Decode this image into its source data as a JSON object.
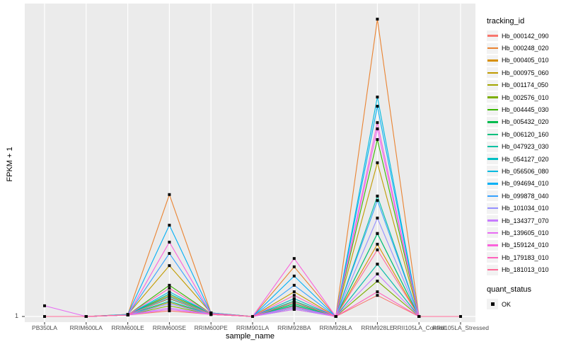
{
  "chart_data": {
    "type": "line",
    "title": "",
    "xlabel": "sample_name",
    "ylabel": "FPKM + 1",
    "x_categories": [
      "PB350LA",
      "RRIM600LA",
      "RRIM600LE",
      "RRIM600SE",
      "RRIM600PE",
      "RRIM901LA",
      "RRIM928BA",
      "RRIM928LA",
      "RRIM928LE",
      "RRII105LA_Control",
      "RRII105LA_Stressed"
    ],
    "y_ticks": [
      "1"
    ],
    "value_note": "y-axis shows only tick '1' at baseline; series values are relative heights above the FPKM+1=1 baseline, normalized so 1.0 = tallest peak (Hb_000248_020 at RRIM928LE)",
    "panel_bg": "#EBEBEB",
    "grid_color": "#FFFFFF",
    "point_color": "#0a0a0a",
    "point_shape": "filled-square",
    "legend_position": "right",
    "series": [
      {
        "name": "Hb_000142_090",
        "color": "#F8766D",
        "values": [
          0,
          0,
          0.005,
          0.019,
          0.007,
          0,
          0.024,
          0,
          0.071,
          0,
          0
        ]
      },
      {
        "name": "Hb_000248_020",
        "color": "#EA8331",
        "values": [
          0,
          0,
          0.007,
          0.41,
          0.012,
          0,
          0.167,
          0,
          1.0,
          0,
          0
        ]
      },
      {
        "name": "Hb_000405_010",
        "color": "#D89000",
        "values": [
          0,
          0,
          0.005,
          0.071,
          0.01,
          0,
          0.06,
          0,
          0.243,
          0,
          0
        ]
      },
      {
        "name": "Hb_000975_060",
        "color": "#C09B00",
        "values": [
          0,
          0,
          0.007,
          0.171,
          0.012,
          0,
          0.083,
          0,
          0.517,
          0,
          0
        ]
      },
      {
        "name": "Hb_001174_050",
        "color": "#A3A500",
        "values": [
          0,
          0,
          0.005,
          0.048,
          0.007,
          0,
          0.036,
          0,
          0.176,
          0,
          0
        ]
      },
      {
        "name": "Hb_002576_010",
        "color": "#7CAE00",
        "values": [
          0,
          0,
          0.005,
          0.036,
          0.007,
          0,
          0.029,
          0,
          0.119,
          0,
          0
        ]
      },
      {
        "name": "Hb_004445_030",
        "color": "#39B600",
        "values": [
          0,
          0,
          0.005,
          0.105,
          0.01,
          0,
          0.048,
          0,
          0.595,
          0,
          0
        ]
      },
      {
        "name": "Hb_005432_020",
        "color": "#00BB4E",
        "values": [
          0,
          0,
          0.005,
          0.06,
          0.007,
          0,
          0.043,
          0,
          0.279,
          0,
          0
        ]
      },
      {
        "name": "Hb_006120_160",
        "color": "#00BF7D",
        "values": [
          0,
          0,
          0.005,
          0.076,
          0.01,
          0,
          0.052,
          0,
          0.279,
          0,
          0
        ]
      },
      {
        "name": "Hb_047923_030",
        "color": "#00C1A3",
        "values": [
          0,
          0,
          0.005,
          0.067,
          0.007,
          0,
          0.038,
          0,
          0.405,
          0,
          0
        ]
      },
      {
        "name": "Hb_054127_020",
        "color": "#00BFC4",
        "values": [
          0,
          0,
          0.005,
          0.052,
          0.007,
          0,
          0.033,
          0,
          0.176,
          0,
          0
        ]
      },
      {
        "name": "Hb_056506_080",
        "color": "#00BAE0",
        "values": [
          0,
          0,
          0.005,
          0.083,
          0.01,
          0,
          0.06,
          0,
          0.738,
          0,
          0
        ]
      },
      {
        "name": "Hb_094694_010",
        "color": "#00B0F6",
        "values": [
          0,
          0,
          0.007,
          0.307,
          0.012,
          0,
          0.136,
          0,
          0.707,
          0,
          0
        ]
      },
      {
        "name": "Hb_099878_040",
        "color": "#35A2FF",
        "values": [
          0,
          0,
          0.005,
          0.212,
          0.01,
          0,
          0.105,
          0,
          0.39,
          0,
          0
        ]
      },
      {
        "name": "Hb_101034_010",
        "color": "#9590FF",
        "values": [
          0,
          0,
          0.005,
          0.043,
          0.007,
          0,
          0.029,
          0,
          0.331,
          0,
          0
        ]
      },
      {
        "name": "Hb_134377_070",
        "color": "#C77CFF",
        "values": [
          0,
          0,
          0.005,
          0.029,
          0.007,
          0,
          0.024,
          0,
          0.143,
          0,
          0
        ]
      },
      {
        "name": "Hb_139605_010",
        "color": "#E76BF3",
        "values": [
          0.036,
          0,
          0.005,
          0.024,
          0.007,
          0,
          0.033,
          0,
          0.631,
          0,
          0
        ]
      },
      {
        "name": "Hb_159124_010",
        "color": "#FA62DB",
        "values": [
          0,
          0,
          0.005,
          0.25,
          0.01,
          0,
          0.195,
          0,
          0.652,
          0,
          0
        ]
      },
      {
        "name": "Hb_179183_010",
        "color": "#FF62BC",
        "values": [
          0,
          0,
          0.005,
          0.095,
          0.01,
          0,
          0.071,
          0,
          0.083,
          0,
          0
        ]
      },
      {
        "name": "Hb_181013_010",
        "color": "#FF6A98",
        "values": [
          0,
          0,
          0.005,
          0.062,
          0.007,
          0,
          0.048,
          0,
          0.224,
          0,
          0
        ]
      }
    ],
    "legend": {
      "tracking_title": "tracking_id",
      "quant_title": "quant_status",
      "quant_items": [
        {
          "label": "OK"
        }
      ]
    }
  }
}
